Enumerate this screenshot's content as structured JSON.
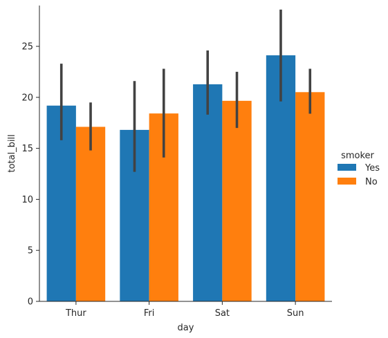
{
  "chart_data": {
    "type": "bar",
    "xlabel": "day",
    "ylabel": "total_bill",
    "categories": [
      "Thur",
      "Fri",
      "Sat",
      "Sun"
    ],
    "ylim": [
      0,
      29
    ],
    "yticks": [
      0,
      5,
      10,
      15,
      20,
      25
    ],
    "grid": false,
    "legend": {
      "title": "smoker",
      "placement": "right"
    },
    "series": [
      {
        "name": "Yes",
        "color": "#1f77b4",
        "values": [
          19.19,
          16.81,
          21.28,
          24.12
        ],
        "ci_low": [
          15.8,
          12.7,
          18.3,
          19.6
        ],
        "ci_high": [
          23.3,
          21.6,
          24.6,
          28.6
        ]
      },
      {
        "name": "No",
        "color": "#ff7f0e",
        "values": [
          17.11,
          18.42,
          19.66,
          20.51
        ],
        "ci_low": [
          14.8,
          14.1,
          17.0,
          18.4
        ],
        "ci_high": [
          19.5,
          22.8,
          22.5,
          22.8
        ]
      }
    ],
    "errorbar_color": "#424242"
  }
}
